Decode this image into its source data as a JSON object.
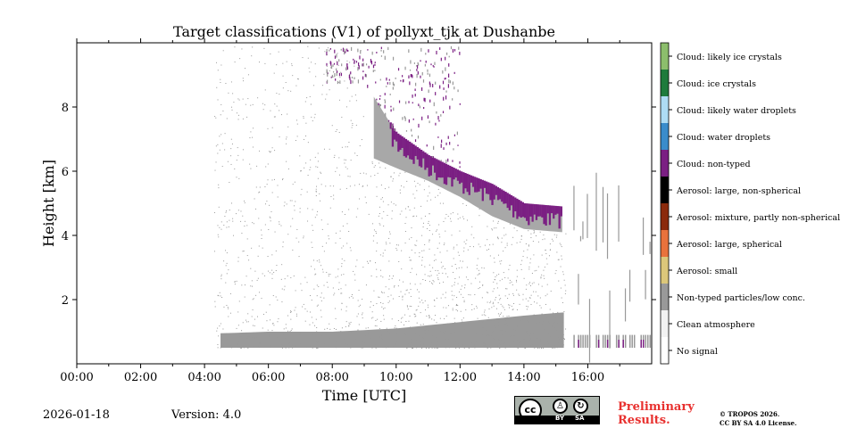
{
  "chart_data": {
    "type": "heatmap",
    "title": "Target classifications (V1) of pollyxt_tjk at Dushanbe",
    "xlabel": "Time [UTC]",
    "ylabel": "Height [km]",
    "x_tick_labels": [
      "00:00",
      "02:00",
      "04:00",
      "06:00",
      "08:00",
      "10:00",
      "12:00",
      "14:00",
      "16:00"
    ],
    "x_tick_hours": [
      0,
      2,
      4,
      6,
      8,
      10,
      12,
      14,
      16
    ],
    "xlim_hours": [
      0,
      18
    ],
    "y_tick_labels": [
      "2",
      "4",
      "6",
      "8"
    ],
    "y_tick_km": [
      2,
      4,
      6,
      8
    ],
    "ylim_km": [
      0,
      10
    ],
    "grid": false,
    "legend": {
      "placement": "right colorbar",
      "classes": [
        {
          "label": "Cloud: likely ice crystals",
          "color": "#8cbe6c"
        },
        {
          "label": "Cloud: ice crystals",
          "color": "#1e7b3c"
        },
        {
          "label": "Cloud: likely water droplets",
          "color": "#aedcf4"
        },
        {
          "label": "Cloud: water droplets",
          "color": "#3a8ccb"
        },
        {
          "label": "Cloud: non-typed",
          "color": "#7b1f83"
        },
        {
          "label": "Aerosol: large, non-spherical",
          "color": "#000000"
        },
        {
          "label": "Aerosol: mixture, partly non-spherical",
          "color": "#8b2a0c"
        },
        {
          "label": "Aerosol: large, spherical",
          "color": "#e9723c"
        },
        {
          "label": "Aerosol: small",
          "color": "#dcc77a"
        },
        {
          "label": "Non-typed particles/low conc.",
          "color": "#999999"
        },
        {
          "label": "Clean atmosphere",
          "color": "#f2f2f2"
        },
        {
          "label": "No signal",
          "color": "#ffffff"
        }
      ]
    },
    "features": {
      "boundary_layer_top_km": [
        [
          4.5,
          0.95
        ],
        [
          6,
          1.0
        ],
        [
          8,
          1.0
        ],
        [
          10,
          1.1
        ],
        [
          12,
          1.3
        ],
        [
          14,
          1.5
        ],
        [
          15.2,
          1.6
        ]
      ],
      "cloud_base_km": [
        [
          9.3,
          6.4
        ],
        [
          10,
          6.1
        ],
        [
          11,
          5.7
        ],
        [
          12,
          5.2
        ],
        [
          13,
          4.6
        ],
        [
          14,
          4.2
        ],
        [
          15.2,
          4.1
        ]
      ],
      "cloud_top_km": [
        [
          9.0,
          8.8
        ],
        [
          10,
          7.2
        ],
        [
          11,
          6.5
        ],
        [
          12,
          6.0
        ],
        [
          13,
          5.6
        ],
        [
          14,
          5.0
        ],
        [
          15.2,
          4.9
        ]
      ],
      "data_gap_hours": [
        15.25,
        15.55
      ],
      "signal_start_hour": 4.5,
      "signal_end_hour": 17.95
    }
  },
  "footer": {
    "date": "2026-01-18",
    "version": "Version: 4.0",
    "preliminary_line1": "Preliminary",
    "preliminary_line2": "Results.",
    "copyright_line1": "© TROPOS 2026.",
    "copyright_line2": "CC BY SA 4.0 License."
  },
  "license_badge": {
    "cc": "cc",
    "by": "BY",
    "sa": "SA"
  }
}
